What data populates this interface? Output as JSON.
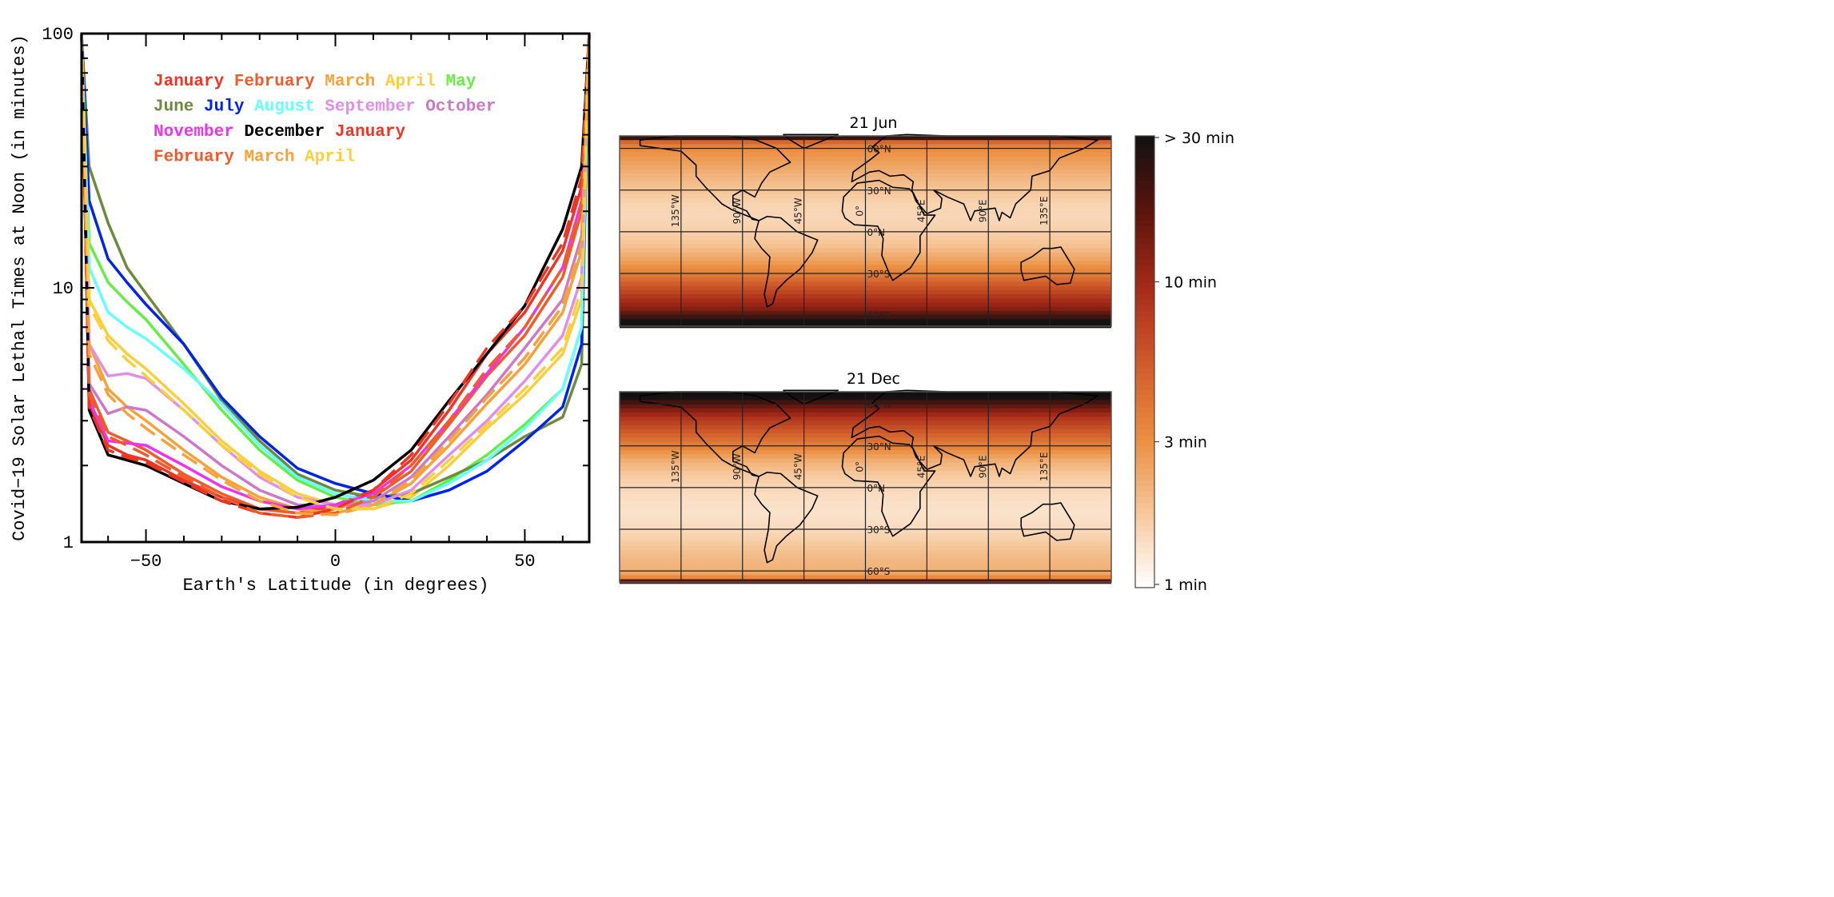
{
  "chart_data": [
    {
      "type": "line",
      "xlabel": "Earth's Latitude (in degrees)",
      "ylabel": "Covid−19 Solar Lethal Times at Noon (in minutes)",
      "xlim": [
        -67,
        67
      ],
      "ylim": [
        1,
        100
      ],
      "yscale": "log",
      "xticks": [
        -50,
        0,
        50
      ],
      "xtick_labels": [
        "−50",
        "0",
        "50"
      ],
      "yticks": [
        1,
        10,
        100
      ],
      "ytick_labels": [
        "1",
        "10",
        "100"
      ],
      "grid": false,
      "legend_placement": "top-left",
      "x": [
        -67,
        -65,
        -60,
        -55,
        -50,
        -40,
        -30,
        -20,
        -10,
        0,
        10,
        20,
        30,
        40,
        50,
        60,
        65,
        67
      ],
      "series": [
        {
          "name": "January",
          "color": "#ee3524",
          "dash": false,
          "values": [
            100,
            3.5,
            2.4,
            2.2,
            2.1,
            1.75,
            1.5,
            1.35,
            1.3,
            1.4,
            1.6,
            2.1,
            3.3,
            5.5,
            8.0,
            14,
            25,
            100
          ]
        },
        {
          "name": "February",
          "color": "#f15a29",
          "dash": false,
          "values": [
            100,
            4.0,
            2.7,
            2.5,
            2.3,
            1.85,
            1.55,
            1.35,
            1.3,
            1.35,
            1.5,
            1.9,
            2.9,
            4.5,
            6.5,
            11,
            20,
            100
          ]
        },
        {
          "name": "March",
          "color": "#f7a13a",
          "dash": false,
          "values": [
            100,
            6.0,
            4.0,
            3.4,
            3.0,
            2.3,
            1.8,
            1.5,
            1.35,
            1.3,
            1.4,
            1.7,
            2.4,
            3.5,
            5.0,
            8.0,
            14,
            100
          ]
        },
        {
          "name": "April",
          "color": "#fbcf3c",
          "dash": false,
          "values": [
            100,
            9.0,
            6.5,
            5.5,
            4.8,
            3.5,
            2.5,
            1.9,
            1.55,
            1.4,
            1.35,
            1.5,
            2.0,
            2.8,
            3.8,
            5.5,
            9,
            100
          ]
        },
        {
          "name": "May",
          "color": "#66ee44",
          "dash": false,
          "values": [
            100,
            15,
            10.5,
            8.8,
            7.5,
            5.0,
            3.3,
            2.3,
            1.75,
            1.5,
            1.4,
            1.45,
            1.75,
            2.2,
            2.9,
            4.0,
            7,
            100
          ]
        },
        {
          "name": "June",
          "color": "#6e8b3d",
          "dash": false,
          "values": [
            100,
            30,
            18,
            12,
            9.5,
            6.0,
            3.6,
            2.5,
            1.85,
            1.6,
            1.5,
            1.55,
            1.8,
            2.1,
            2.6,
            3.1,
            5,
            100
          ]
        },
        {
          "name": "July",
          "color": "#0022ee",
          "dash": false,
          "values": [
            100,
            22,
            13,
            10.5,
            8.6,
            6.0,
            3.7,
            2.6,
            1.95,
            1.7,
            1.55,
            1.45,
            1.6,
            1.9,
            2.5,
            3.4,
            6,
            100
          ]
        },
        {
          "name": "August",
          "color": "#66ffff",
          "dash": false,
          "values": [
            100,
            12,
            8.0,
            7.0,
            6.3,
            4.8,
            3.5,
            2.4,
            1.8,
            1.55,
            1.45,
            1.45,
            1.7,
            2.1,
            2.8,
            4.0,
            7,
            100
          ]
        },
        {
          "name": "September",
          "color": "#e08ee8",
          "dash": false,
          "values": [
            100,
            6.0,
            4.5,
            4.6,
            4.4,
            3.3,
            2.4,
            1.8,
            1.5,
            1.4,
            1.4,
            1.6,
            2.2,
            3.0,
            4.3,
            6.5,
            11,
            100
          ]
        },
        {
          "name": "October",
          "color": "#cc77cc",
          "dash": false,
          "values": [
            100,
            4.2,
            3.2,
            3.4,
            3.3,
            2.6,
            2.0,
            1.6,
            1.4,
            1.38,
            1.45,
            1.8,
            2.6,
            3.8,
            5.8,
            9.0,
            16,
            100
          ]
        },
        {
          "name": "November",
          "color": "#ee33ee",
          "dash": false,
          "values": [
            100,
            3.6,
            2.5,
            2.45,
            2.4,
            2.0,
            1.65,
            1.45,
            1.35,
            1.4,
            1.55,
            2.0,
            3.0,
            4.6,
            7.0,
            12,
            22,
            100
          ]
        },
        {
          "name": "December",
          "color": "#000000",
          "dash": false,
          "values": [
            100,
            3.3,
            2.2,
            2.1,
            2.0,
            1.7,
            1.45,
            1.35,
            1.37,
            1.5,
            1.75,
            2.3,
            3.6,
            5.5,
            8.5,
            17,
            30,
            100
          ]
        },
        {
          "name": "January",
          "color": "#ee3524",
          "dash": true,
          "values": [
            100,
            3.4,
            2.3,
            2.15,
            2.05,
            1.72,
            1.45,
            1.3,
            1.25,
            1.35,
            1.6,
            2.2,
            3.5,
            5.8,
            8.5,
            15,
            27,
            100
          ]
        },
        {
          "name": "February",
          "color": "#f15a29",
          "dash": true,
          "values": [
            100,
            3.8,
            2.6,
            2.4,
            2.2,
            1.8,
            1.5,
            1.3,
            1.25,
            1.3,
            1.5,
            2.0,
            3.0,
            4.8,
            7.0,
            12,
            21,
            100
          ]
        },
        {
          "name": "March",
          "color": "#f7a13a",
          "dash": true,
          "values": [
            100,
            5.5,
            3.8,
            3.2,
            2.8,
            2.2,
            1.75,
            1.45,
            1.3,
            1.28,
            1.4,
            1.75,
            2.5,
            3.7,
            5.3,
            8.5,
            15,
            100
          ]
        },
        {
          "name": "April",
          "color": "#fbcf3c",
          "dash": true,
          "values": [
            100,
            8.5,
            6.2,
            5.2,
            4.5,
            3.3,
            2.4,
            1.85,
            1.5,
            1.35,
            1.35,
            1.55,
            2.1,
            2.9,
            4.0,
            5.8,
            10,
            100
          ]
        }
      ]
    },
    {
      "type": "heatmap",
      "panels": [
        {
          "title": "21 Jun",
          "month": "June"
        },
        {
          "title": "21 Dec",
          "month": "December"
        }
      ],
      "lat_labels": [
        "60°N",
        "30°N",
        "0°N",
        "30°S",
        "60°S"
      ],
      "lat_values": [
        60,
        30,
        0,
        -30,
        -60
      ],
      "lon_labels": [
        "135°W",
        "90°W",
        "45°W",
        "0°",
        "45°E",
        "90°E",
        "135°E"
      ],
      "lon_values": [
        -135,
        -90,
        -45,
        0,
        45,
        90,
        135
      ],
      "colorbar": {
        "scale": "log",
        "range": [
          1,
          30
        ],
        "ticks": [
          30,
          10,
          3,
          1
        ],
        "tick_labels": [
          "> 30 min",
          "10 min",
          "3 min",
          "1 min"
        ],
        "colors": [
          "#ffffff",
          "#f6c79a",
          "#ea8d3e",
          "#cf5a2a",
          "#a52a18",
          "#5a140c",
          "#111111"
        ]
      }
    }
  ]
}
